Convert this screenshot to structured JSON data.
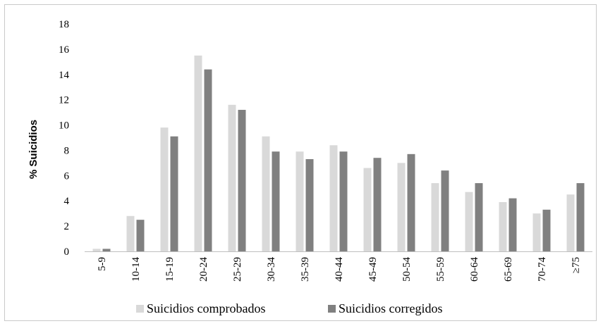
{
  "chart_data": {
    "type": "bar",
    "title": "",
    "xlabel": "",
    "ylabel": "% Suicidios",
    "ylim": [
      0,
      18
    ],
    "yticks": [
      0,
      2,
      4,
      6,
      8,
      10,
      12,
      14,
      16,
      18
    ],
    "grid": false,
    "legend_position": "bottom",
    "categories": [
      "5-9",
      "10-14",
      "15-19",
      "20-24",
      "25-29",
      "30-34",
      "35-39",
      "40-44",
      "45-49",
      "50-54",
      "55-59",
      "60-64",
      "65-69",
      "70-74",
      "≥75"
    ],
    "series": [
      {
        "name": "Suicidios comprobados",
        "color": "#d9d9d9",
        "values": [
          0.2,
          2.8,
          9.8,
          15.5,
          11.6,
          9.1,
          7.9,
          8.4,
          6.6,
          7.0,
          5.4,
          4.7,
          3.9,
          3.0,
          4.5
        ]
      },
      {
        "name": "Suicidios corregidos",
        "color": "#808080",
        "values": [
          0.2,
          2.5,
          9.1,
          14.4,
          11.2,
          7.9,
          7.3,
          7.9,
          7.4,
          7.7,
          6.4,
          5.4,
          4.2,
          3.3,
          5.4
        ]
      }
    ]
  }
}
